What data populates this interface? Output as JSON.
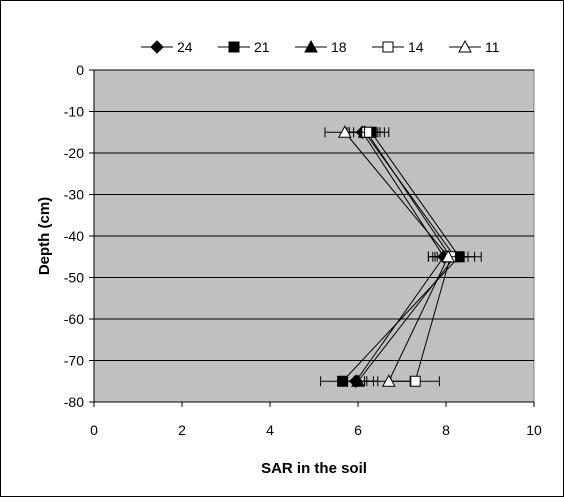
{
  "chart_data": {
    "type": "line",
    "title": "",
    "xlabel": "SAR in the soil",
    "ylabel": "Depth (cm)",
    "xlim": [
      0,
      10
    ],
    "ylim": [
      -80,
      0
    ],
    "xticks": [
      "0",
      "2",
      "4",
      "6",
      "8",
      "10"
    ],
    "yticks": [
      "0",
      "-10",
      "-20",
      "-30",
      "-40",
      "-50",
      "-60",
      "-70",
      "-80"
    ],
    "grid": true,
    "legend_position": "top",
    "series": [
      {
        "name": "24",
        "marker": "diamond-filled",
        "x": [
          6.1,
          7.95,
          5.95
        ],
        "y": [
          -15,
          -45,
          -75
        ],
        "err": [
          0.35,
          0.35,
          0.4
        ]
      },
      {
        "name": "21",
        "marker": "square-filled",
        "x": [
          6.3,
          8.3,
          5.65
        ],
        "y": [
          -15,
          -45,
          -75
        ],
        "err": [
          0.4,
          0.5,
          0.5
        ]
      },
      {
        "name": "18",
        "marker": "triangle-filled",
        "x": [
          6.15,
          8.2,
          6.0
        ],
        "y": [
          -15,
          -45,
          -75
        ],
        "err": [
          0.35,
          0.45,
          0.45
        ]
      },
      {
        "name": "14",
        "marker": "square-open",
        "x": [
          6.2,
          8.1,
          7.3
        ],
        "y": [
          -15,
          -45,
          -75
        ],
        "err": [
          0.4,
          0.4,
          0.55
        ]
      },
      {
        "name": "11",
        "marker": "triangle-open",
        "x": [
          5.7,
          8.05,
          6.7
        ],
        "y": [
          -15,
          -45,
          -75
        ],
        "err": [
          0.45,
          0.45,
          0.5
        ]
      }
    ]
  }
}
